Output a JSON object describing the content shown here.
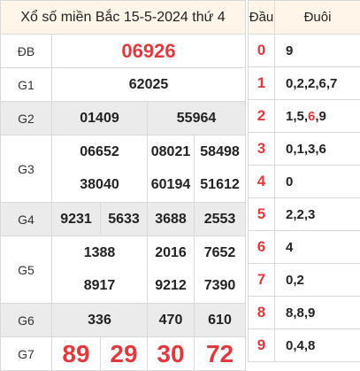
{
  "title": "Xổ số miền Bắc 15-5-2024 thứ 4",
  "rows": {
    "db": {
      "label": "ĐB",
      "values": [
        "06926"
      ]
    },
    "g1": {
      "label": "G1",
      "values": [
        "62025"
      ]
    },
    "g2": {
      "label": "G2",
      "values": [
        "01409",
        "55964"
      ]
    },
    "g3": {
      "label": "G3",
      "values": [
        "06652",
        "08021",
        "58498",
        "38040",
        "60194",
        "51612"
      ]
    },
    "g4": {
      "label": "G4",
      "values": [
        "9231",
        "5633",
        "3688",
        "2553"
      ]
    },
    "g5": {
      "label": "G5",
      "values": [
        "1388",
        "2016",
        "7652",
        "8917",
        "9212",
        "7390"
      ]
    },
    "g6": {
      "label": "G6",
      "values": [
        "336",
        "470",
        "610"
      ]
    },
    "g7": {
      "label": "G7",
      "values": [
        "89",
        "29",
        "30",
        "72"
      ]
    }
  },
  "loto": {
    "head_label": "Đầu",
    "tail_label": "Đuôi",
    "rows": [
      {
        "head": "0",
        "tail": "9"
      },
      {
        "head": "1",
        "tail": "0,2,2,6,7"
      },
      {
        "head": "2",
        "tail_parts": [
          "1,5,",
          "6",
          ",9"
        ]
      },
      {
        "head": "3",
        "tail": "0,1,3,6"
      },
      {
        "head": "4",
        "tail": "0"
      },
      {
        "head": "5",
        "tail": "2,2,3"
      },
      {
        "head": "6",
        "tail": "4"
      },
      {
        "head": "7",
        "tail": "0,2"
      },
      {
        "head": "8",
        "tail": "8,8,9"
      },
      {
        "head": "9",
        "tail": "0,4,8"
      }
    ]
  },
  "colors": {
    "accent": "#e0393e",
    "header_bg": "#fff5e8",
    "alt_row_bg": "#ebebeb",
    "border": "#d9d9d9"
  }
}
